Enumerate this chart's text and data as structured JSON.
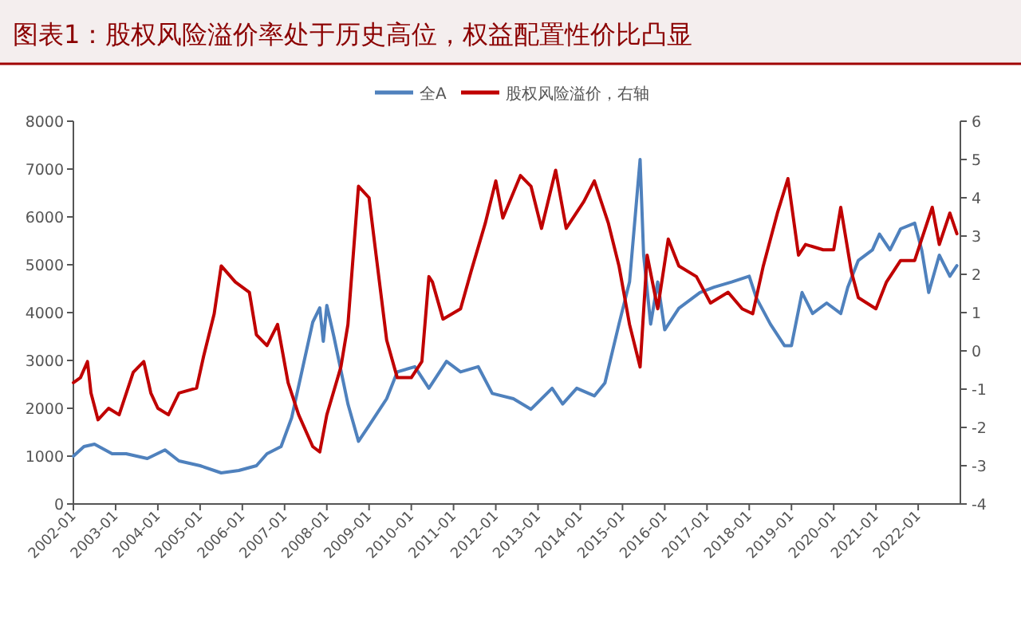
{
  "chart_data": {
    "type": "line",
    "title": "图表1：股权风险溢价率处于历史高位，权益配置性价比凸显",
    "legend": "top",
    "grid": false,
    "xlim": [
      "2002-01",
      "2022-12-31"
    ],
    "xticks": [
      "2002-01",
      "2003-01",
      "2004-01",
      "2005-01",
      "2006-01",
      "2007-01",
      "2008-01",
      "2009-01",
      "2010-01",
      "2011-01",
      "2012-01",
      "2013-01",
      "2014-01",
      "2015-01",
      "2016-01",
      "2017-01",
      "2018-01",
      "2019-01",
      "2020-01",
      "2021-01",
      "2022-01"
    ],
    "ylim": [
      0,
      8000
    ],
    "yticks": [
      0,
      1000,
      2000,
      3000,
      4000,
      5000,
      6000,
      7000,
      8000
    ],
    "y2lim": [
      -4,
      6
    ],
    "y2ticks": [
      -4,
      -3,
      -2,
      -1,
      0,
      1,
      2,
      3,
      4,
      5,
      6
    ],
    "series": [
      {
        "name": "全A",
        "color": "#4f81bd",
        "x": [
          "2002-01",
          "2002-04",
          "2002-07",
          "2002-12",
          "2003-04",
          "2003-10",
          "2004-03",
          "2004-07",
          "2005-01",
          "2005-07",
          "2005-12",
          "2006-05",
          "2006-08",
          "2006-12",
          "2007-03",
          "2007-06",
          "2007-09",
          "2007-11",
          "2007-12",
          "2008-01",
          "2008-03",
          "2008-07",
          "2008-10",
          "2009-01",
          "2009-06",
          "2009-09",
          "2010-02",
          "2010-06",
          "2010-11",
          "2011-03",
          "2011-08",
          "2011-12",
          "2012-06",
          "2012-11",
          "2013-05",
          "2013-08",
          "2013-12",
          "2014-05",
          "2014-08",
          "2014-12",
          "2015-03",
          "2015-06",
          "2015-07",
          "2015-09",
          "2015-11",
          "2016-01",
          "2016-05",
          "2016-11",
          "2017-03",
          "2017-08",
          "2018-01",
          "2018-03",
          "2018-07",
          "2018-11",
          "2019-01",
          "2019-04",
          "2019-07",
          "2019-11",
          "2020-03",
          "2020-05",
          "2020-08",
          "2020-12",
          "2021-02",
          "2021-05",
          "2021-08",
          "2021-12",
          "2022-02",
          "2022-04",
          "2022-07",
          "2022-10",
          "2022-12"
        ],
        "values": [
          1000,
          1200,
          1250,
          1050,
          1050,
          950,
          1130,
          900,
          800,
          650,
          700,
          800,
          1050,
          1200,
          1800,
          2800,
          3800,
          4100,
          3400,
          4150,
          3500,
          2090,
          1310,
          1640,
          2200,
          2760,
          2870,
          2420,
          2980,
          2760,
          2870,
          2310,
          2200,
          1980,
          2420,
          2090,
          2420,
          2260,
          2530,
          3760,
          4640,
          7200,
          5200,
          3760,
          4640,
          3640,
          4090,
          4420,
          4530,
          4640,
          4760,
          4310,
          3760,
          3310,
          3310,
          4420,
          3980,
          4200,
          3980,
          4530,
          5090,
          5310,
          5640,
          5310,
          5750,
          5870,
          5310,
          4420,
          5200,
          4760,
          4980
        ]
      },
      {
        "name": "股权风险溢价，右轴",
        "color": "#c00000",
        "axis": "y2",
        "x": [
          "2002-01",
          "2002-03",
          "2002-05",
          "2002-06",
          "2002-08",
          "2002-11",
          "2003-02",
          "2003-06",
          "2003-09",
          "2003-11",
          "2004-01",
          "2004-04",
          "2004-07",
          "2004-12",
          "2005-02",
          "2005-05",
          "2005-07",
          "2005-11",
          "2006-03",
          "2006-05",
          "2006-08",
          "2006-11",
          "2007-02",
          "2007-05",
          "2007-09",
          "2007-11",
          "2008-01",
          "2008-05",
          "2008-07",
          "2008-10",
          "2009-01",
          "2009-03",
          "2009-06",
          "2009-09",
          "2010-01",
          "2010-04",
          "2010-06",
          "2010-07",
          "2010-10",
          "2011-03",
          "2011-06",
          "2011-10",
          "2012-01",
          "2012-03",
          "2012-08",
          "2012-11",
          "2013-02",
          "2013-06",
          "2013-09",
          "2014-02",
          "2014-05",
          "2014-09",
          "2014-12",
          "2015-03",
          "2015-06",
          "2015-08",
          "2015-11",
          "2016-02",
          "2016-05",
          "2016-10",
          "2017-02",
          "2017-07",
          "2017-11",
          "2018-02",
          "2018-05",
          "2018-09",
          "2018-12",
          "2019-03",
          "2019-05",
          "2019-10",
          "2020-01",
          "2020-03",
          "2020-06",
          "2020-08",
          "2021-01",
          "2021-04",
          "2021-08",
          "2021-12",
          "2022-02",
          "2022-05",
          "2022-07",
          "2022-10",
          "2022-12"
        ],
        "values": [
          -0.83,
          -0.7,
          -0.28,
          -1.1,
          -1.8,
          -1.5,
          -1.67,
          -0.56,
          -0.28,
          -1.1,
          -1.5,
          -1.67,
          -1.1,
          -0.97,
          -0.14,
          0.97,
          2.22,
          1.8,
          1.53,
          0.42,
          0.14,
          0.69,
          -0.83,
          -1.67,
          -2.5,
          -2.64,
          -1.67,
          -0.42,
          0.69,
          4.3,
          4.0,
          2.5,
          0.28,
          -0.7,
          -0.7,
          -0.28,
          1.94,
          1.8,
          0.83,
          1.1,
          2.08,
          3.33,
          4.44,
          3.47,
          4.58,
          4.3,
          3.2,
          4.72,
          3.2,
          3.9,
          4.44,
          3.33,
          2.22,
          0.69,
          -0.42,
          2.5,
          1.1,
          2.92,
          2.22,
          1.94,
          1.25,
          1.53,
          1.1,
          0.97,
          2.22,
          3.6,
          4.5,
          2.5,
          2.78,
          2.64,
          2.64,
          3.75,
          2.08,
          1.39,
          1.1,
          1.8,
          2.36,
          2.36,
          2.92,
          3.75,
          2.78,
          3.6,
          3.06
        ]
      }
    ]
  }
}
